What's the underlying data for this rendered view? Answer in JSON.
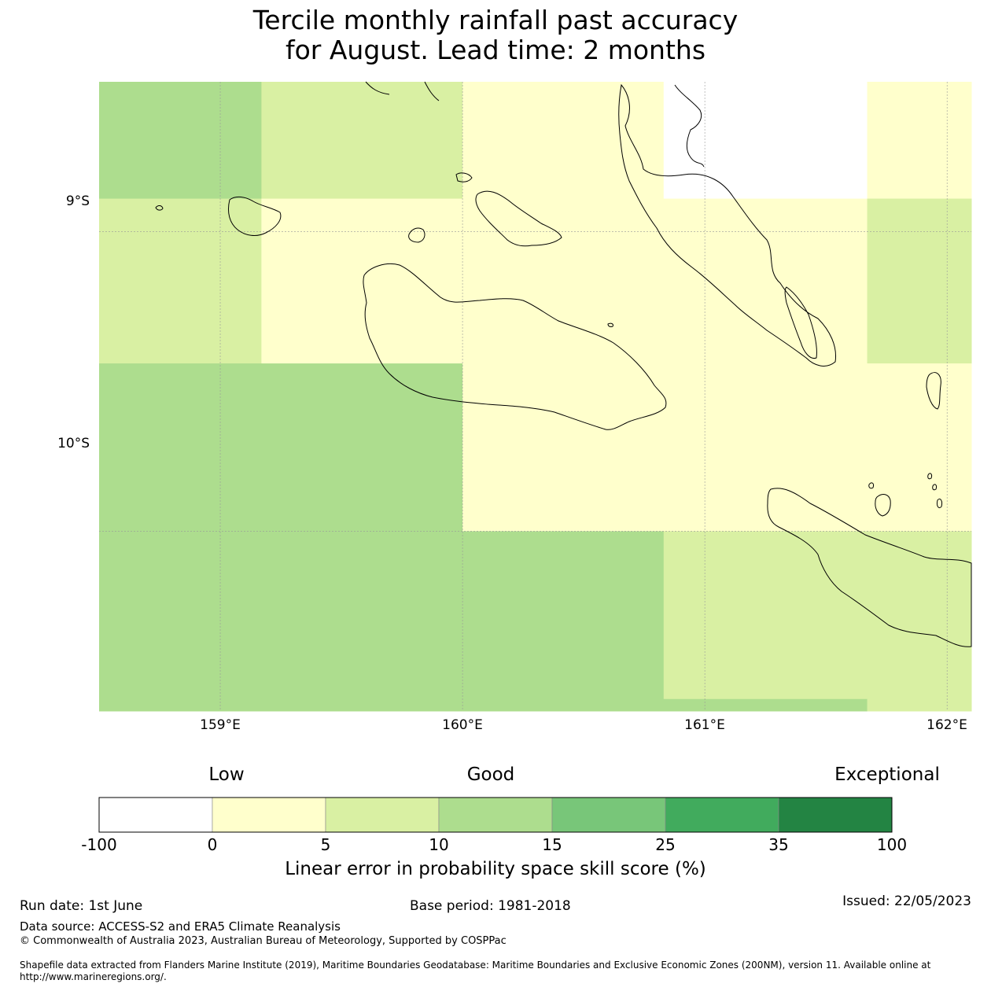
{
  "title_line1": "Tercile monthly rainfall past accuracy",
  "title_line2": "for August. Lead time: 2 months",
  "map": {
    "lon_ticks": [
      "159°E",
      "160°E",
      "161°E",
      "162°E"
    ],
    "lat_ticks": [
      "9°S",
      "10°S"
    ],
    "extent": {
      "lon_min": 158.5,
      "lon_max": 162.1,
      "lat_min": -10.6,
      "lat_max": -8.5
    },
    "grid_lines": true,
    "cell_skill_category": {
      "lon_edges": [
        158.5,
        159.17,
        160.0,
        160.83,
        161.67,
        162.1
      ],
      "lat_edges": [
        -8.5,
        -8.89,
        -9.44,
        -10.0,
        -10.56,
        -10.6
      ],
      "rows": [
        [
          "10-15",
          "5-10",
          "0-5",
          "no data",
          "0-5"
        ],
        [
          "5-10",
          "0-5",
          "0-5",
          "0-5",
          "5-10"
        ],
        [
          "10-15",
          "10-15",
          "0-5",
          "0-5",
          "0-5"
        ],
        [
          "10-15",
          "10-15",
          "10-15",
          "5-10",
          "5-10"
        ],
        [
          "10-15",
          "10-15",
          "10-15",
          "10-15",
          "5-10"
        ]
      ]
    }
  },
  "colorbar": {
    "categories": [
      "Low",
      "Good",
      "Exceptional"
    ],
    "tick_labels": [
      "-100",
      "0",
      "5",
      "10",
      "15",
      "25",
      "35",
      "100"
    ],
    "colors": [
      "#ffffff",
      "#ffffcc",
      "#d9f0a3",
      "#addd8e",
      "#78c679",
      "#41ab5d",
      "#238443"
    ],
    "label": "Linear error in probability space skill score (%)"
  },
  "footer": {
    "run_date": "Run date: 1st June",
    "base_period": "Base period: 1981-2018",
    "issued": "Issued: 22/05/2023",
    "data_source": "Data source: ACCESS-S2 and ERA5 Climate Reanalysis",
    "copyright": "© Commonwealth of Australia 2023, Australian Bureau of Meteorology, Supported by COSPPac",
    "shapefile": "Shapefile data extracted from Flanders Marine Institute (2019), Maritime Boundaries Geodatabase: Maritime Boundaries and Exclusive Economic Zones (200NM), version 11. Available online at http://www.marineregions.org/."
  }
}
